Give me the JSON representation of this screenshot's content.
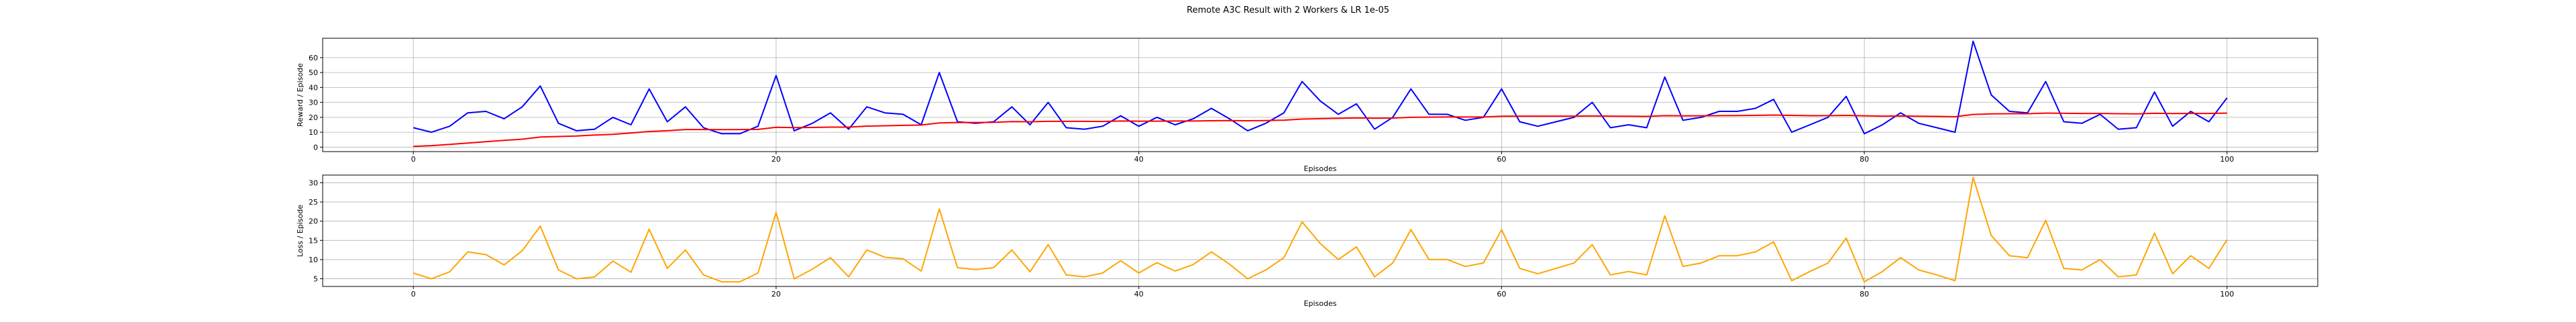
{
  "figure_title": "Remote A3C Result with 2 Workers & LR 1e-05",
  "chart_data": [
    {
      "type": "line",
      "ylabel": "Reward / Episode",
      "xlabel": "Episodes",
      "xlim": [
        -5,
        105
      ],
      "ylim": [
        -3,
        73
      ],
      "xticks": [
        0,
        20,
        40,
        60,
        80,
        100
      ],
      "yticks": [
        0,
        10,
        20,
        30,
        40,
        50,
        60
      ],
      "grid": true,
      "series": [
        {
          "color": "#0000ff",
          "values": [
            13,
            10,
            14,
            23,
            24,
            19,
            27,
            41,
            16,
            11,
            12,
            20,
            15,
            39,
            17,
            27,
            13,
            9,
            9,
            14,
            48,
            11,
            16,
            23,
            12,
            27,
            23,
            22,
            15,
            50,
            17,
            16,
            17,
            27,
            15,
            30,
            13,
            12,
            14,
            21,
            14,
            20,
            15,
            19,
            26,
            19,
            11,
            16,
            23,
            44,
            31,
            22,
            29,
            12,
            20,
            39,
            22,
            22,
            18,
            20,
            39,
            17,
            14,
            17,
            20,
            30,
            13,
            15,
            13,
            47,
            18,
            20,
            24,
            24,
            26,
            32,
            10,
            15,
            20,
            34,
            9,
            15,
            23,
            16,
            13,
            10,
            71,
            35,
            24,
            23,
            44,
            17,
            16,
            22,
            12,
            13,
            37,
            14,
            24,
            17,
            33
          ]
        },
        {
          "color": "#ff0000",
          "values": [
            0.5,
            1,
            1.8,
            2.7,
            3.6,
            4.5,
            5.3,
            6.8,
            7.1,
            7.5,
            8.1,
            8.6,
            9.5,
            10.5,
            11,
            11.8,
            11.8,
            11.7,
            11.8,
            11.9,
            13.3,
            13.1,
            13.2,
            13.4,
            13.4,
            14.1,
            14.3,
            14.6,
            14.8,
            16.2,
            16.5,
            16.5,
            16.6,
            17.1,
            17,
            17.3,
            17.3,
            17.3,
            17.2,
            17.5,
            17.4,
            17.4,
            17.5,
            17.5,
            17.7,
            17.8,
            17.7,
            17.8,
            18.1,
            18.8,
            19.1,
            19.3,
            19.6,
            19.4,
            19.5,
            20,
            20.1,
            20.2,
            20.2,
            20.2,
            20.7,
            20.8,
            20.8,
            20.8,
            20.8,
            20.9,
            20.8,
            20.7,
            20.6,
            21.1,
            21,
            21,
            21.1,
            21.2,
            21.3,
            21.5,
            21.3,
            21.1,
            21.1,
            21.3,
            21,
            20.8,
            20.9,
            20.7,
            20.6,
            20.4,
            21.9,
            22.3,
            22.4,
            22.4,
            22.8,
            22.7,
            22.6,
            22.6,
            22.4,
            22.3,
            22.7,
            22.5,
            22.6,
            22.6,
            22.8
          ]
        }
      ]
    },
    {
      "type": "line",
      "ylabel": "Loss / Episode",
      "xlabel": "Episodes",
      "xlim": [
        -5,
        105
      ],
      "ylim": [
        3,
        32
      ],
      "xticks": [
        0,
        20,
        40,
        60,
        80,
        100
      ],
      "yticks": [
        5,
        10,
        15,
        20,
        25,
        30
      ],
      "grid": true,
      "series": [
        {
          "color": "#ffa500",
          "values": [
            6.5,
            5,
            6.8,
            12,
            11.3,
            8.6,
            12.3,
            18.7,
            7.3,
            5,
            5.5,
            9.6,
            6.7,
            17.9,
            7.7,
            12.5,
            6,
            4.2,
            4.2,
            6.5,
            22.3,
            5,
            7.5,
            10.5,
            5.5,
            12.5,
            10.6,
            10.2,
            7,
            23.2,
            7.9,
            7.4,
            7.9,
            12.5,
            6.8,
            13.9,
            6,
            5.5,
            6.5,
            9.7,
            6.5,
            9.2,
            7,
            8.7,
            12,
            8.8,
            5,
            7.3,
            10.5,
            19.8,
            14.2,
            10,
            13.3,
            5.5,
            9.1,
            17.8,
            10,
            10,
            8.2,
            9.1,
            17.8,
            7.7,
            6.3,
            7.7,
            9.1,
            13.9,
            6,
            6.9,
            6,
            21.4,
            8.2,
            9.1,
            11,
            11,
            12,
            14.6,
            4.5,
            6.9,
            9.1,
            15.6,
            4.2,
            6.9,
            10.5,
            7.3,
            6,
            4.5,
            31.4,
            16.3,
            11,
            10.5,
            20.2,
            7.7,
            7.3,
            10,
            5.5,
            6,
            16.9,
            6.3,
            11,
            7.7,
            15.2
          ]
        }
      ]
    }
  ]
}
